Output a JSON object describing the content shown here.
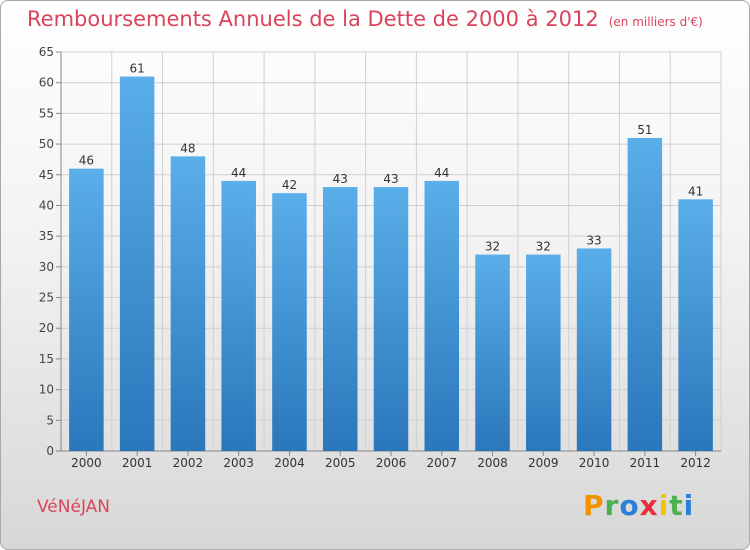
{
  "title": "Remboursements Annuels de la Dette de 2000 à 2012",
  "subtitle": "(en milliers d'€)",
  "commune": "VéNéJAN",
  "brand": {
    "letters": [
      "P",
      "r",
      "o",
      "x",
      "i",
      "t",
      "i"
    ],
    "colors": [
      "#f39200",
      "#4caf50",
      "#2a7fd6",
      "#e8303a",
      "#f3c400",
      "#4caf50",
      "#2a7fd6"
    ]
  },
  "colors": {
    "bar_light": "#5aaee9",
    "bar_dark": "#2a77bb",
    "grid": "#d0d0d0"
  },
  "chart_data": {
    "type": "bar",
    "categories": [
      "2000",
      "2001",
      "2002",
      "2003",
      "2004",
      "2005",
      "2006",
      "2007",
      "2008",
      "2009",
      "2010",
      "2011",
      "2012"
    ],
    "values": [
      46,
      61,
      48,
      44,
      42,
      43,
      43,
      44,
      32,
      32,
      33,
      51,
      41
    ],
    "yticks": [
      0,
      5,
      10,
      15,
      20,
      25,
      30,
      35,
      40,
      45,
      50,
      55,
      60,
      65
    ],
    "ylim": [
      0,
      65
    ],
    "grid": true
  }
}
